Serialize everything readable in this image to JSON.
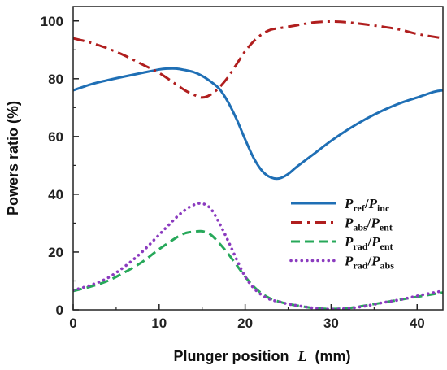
{
  "chart_data": {
    "type": "line",
    "xlabel": "Plunger position",
    "xlabel_symbol": "L",
    "xlabel_unit": "(mm)",
    "ylabel": "Powers  ratio (%)",
    "xlim": [
      0,
      43
    ],
    "ylim": [
      0,
      105
    ],
    "xticks": [
      0,
      10,
      20,
      30,
      40
    ],
    "yticks": [
      0,
      20,
      40,
      60,
      80,
      100
    ],
    "grid": false,
    "legend_position": "center-right",
    "series": [
      {
        "name": "P_ref/P_inc",
        "legend": {
          "num": "P",
          "num_sub": "ref",
          "den": "P",
          "den_sub": "inc"
        },
        "color": "#1f6fb5",
        "style": "solid",
        "x": [
          0,
          2,
          4,
          6,
          8,
          10,
          11,
          12,
          13,
          14,
          15,
          16,
          17,
          18,
          19,
          20,
          21,
          22,
          23,
          24,
          25,
          26,
          28,
          30,
          32,
          34,
          36,
          38,
          40,
          42,
          43
        ],
        "y": [
          76,
          78,
          79.5,
          80.8,
          82,
          83.2,
          83.5,
          83.5,
          83,
          82.3,
          81,
          79,
          76.5,
          72,
          66,
          59,
          52.5,
          48,
          45.8,
          45.5,
          47,
          49.5,
          54,
          58.5,
          62.5,
          66,
          69,
          71.5,
          73.5,
          75.5,
          76
        ]
      },
      {
        "name": "P_abs/P_ent",
        "legend": {
          "num": "P",
          "num_sub": "abs",
          "den": "P",
          "den_sub": "ent"
        },
        "color": "#b01e1e",
        "style": "dashdot",
        "x": [
          0,
          2,
          4,
          6,
          8,
          10,
          12,
          13,
          14,
          15,
          16,
          17,
          18,
          19,
          20,
          21,
          22,
          23,
          24,
          26,
          28,
          30,
          32,
          34,
          36,
          38,
          40,
          42,
          43
        ],
        "y": [
          94,
          92.5,
          90.5,
          88,
          85,
          82,
          78,
          76,
          74.5,
          73.5,
          74.5,
          77,
          80.5,
          85,
          89.5,
          93,
          95.5,
          97,
          97.5,
          98.5,
          99.5,
          99.8,
          99.5,
          98.8,
          98,
          97,
          95.5,
          94.5,
          94
        ]
      },
      {
        "name": "P_rad/P_ent",
        "legend": {
          "num": "P",
          "num_sub": "rad",
          "den": "P",
          "den_sub": "ent"
        },
        "color": "#27a85a",
        "style": "dashed",
        "x": [
          0,
          2,
          4,
          6,
          8,
          10,
          12,
          13,
          14,
          15,
          16,
          17,
          18,
          19,
          20,
          21,
          22,
          23,
          24,
          25,
          26,
          28,
          30,
          32,
          34,
          36,
          38,
          40,
          42,
          43
        ],
        "y": [
          6.5,
          8,
          10,
          13,
          16.5,
          21,
          25,
          26.5,
          27,
          27.2,
          26,
          23,
          19.5,
          15.5,
          11.5,
          8,
          5.5,
          3.8,
          2.8,
          2,
          1.5,
          0.6,
          0.3,
          0.6,
          1.5,
          2.5,
          3.5,
          4.5,
          5.5,
          6
        ]
      },
      {
        "name": "P_rad/P_abs",
        "legend": {
          "num": "P",
          "num_sub": "rad",
          "den": "P",
          "den_sub": "abs"
        },
        "color": "#8b3bbf",
        "style": "dotted",
        "x": [
          0,
          2,
          4,
          6,
          8,
          10,
          11,
          12,
          13,
          14,
          15,
          16,
          17,
          18,
          19,
          20,
          21,
          22,
          23,
          24,
          25,
          26,
          28,
          30,
          32,
          34,
          36,
          38,
          40,
          42,
          43
        ],
        "y": [
          6.8,
          8.5,
          11,
          15,
          20,
          26,
          29,
          32,
          34.5,
          36.3,
          36.8,
          35,
          30,
          24,
          17.5,
          11.5,
          7.5,
          5,
          3.5,
          2.8,
          2,
          1.5,
          0.6,
          0.2,
          0.5,
          1.3,
          2.5,
          3.5,
          4.8,
          6,
          6.5
        ]
      }
    ]
  }
}
